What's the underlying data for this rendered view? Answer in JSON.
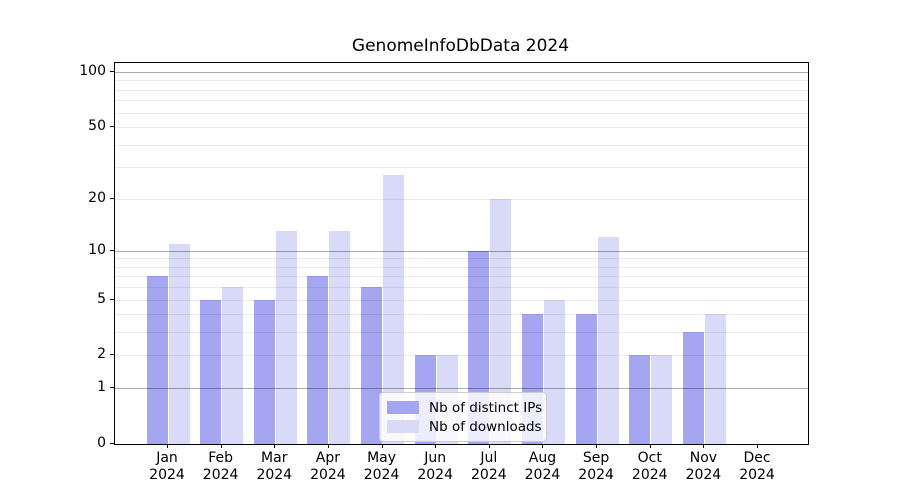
{
  "title": "GenomeInfoDbData 2024",
  "chart_data": {
    "type": "bar",
    "title": "GenomeInfoDbData 2024",
    "categories": [
      "Jan",
      "Feb",
      "Mar",
      "Apr",
      "May",
      "Jun",
      "Jul",
      "Aug",
      "Sep",
      "Oct",
      "Nov",
      "Dec"
    ],
    "x_tick_second_line": "2024",
    "series": [
      {
        "name": "Nb of distinct IPs",
        "color": "#a5a5f2",
        "values": [
          7,
          5,
          5,
          7,
          6,
          2,
          10,
          4,
          4,
          2,
          3,
          0
        ]
      },
      {
        "name": "Nb of downloads",
        "color": "#d9d9f8",
        "values": [
          11,
          6,
          13,
          13,
          27,
          2,
          20,
          5,
          12,
          2,
          4,
          0
        ]
      }
    ],
    "yscale": "log1p",
    "ylim": [
      0,
      112
    ],
    "y_ticks": [
      {
        "label": "0",
        "value": 0
      },
      {
        "label": "1",
        "value": 1
      },
      {
        "label": "2",
        "value": 2
      },
      {
        "label": "5",
        "value": 5
      },
      {
        "label": "10",
        "value": 10
      },
      {
        "label": "20",
        "value": 20
      },
      {
        "label": "50",
        "value": 50
      },
      {
        "label": "100",
        "value": 100
      }
    ],
    "grid": {
      "major_values": [
        1,
        10,
        100
      ],
      "minor_values": [
        2,
        3,
        4,
        5,
        6,
        7,
        8,
        9,
        20,
        30,
        40,
        50,
        60,
        70,
        80,
        90
      ],
      "major_color": "rgba(0,0,0,0.32)",
      "minor_color": "rgba(0,0,0,0.08)",
      "on_top_of_bars": true
    },
    "legend": {
      "position": "lower center",
      "entries": [
        "Nb of distinct IPs",
        "Nb of downloads"
      ]
    },
    "axis_color": "#000000",
    "background_color": "#ffffff"
  }
}
